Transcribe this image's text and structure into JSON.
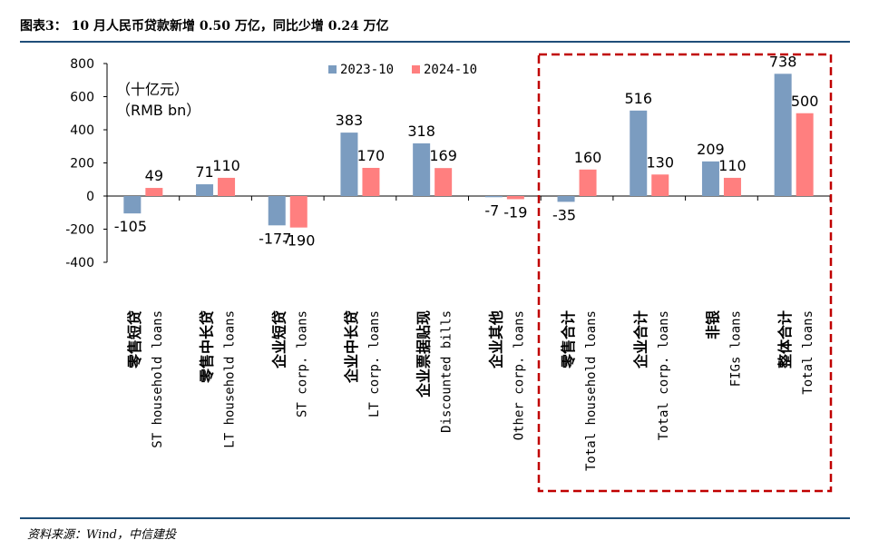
{
  "header": {
    "label": "图表3：",
    "title": "10 月人民币贷款新增 0.50 万亿，同比少增 0.24 万亿"
  },
  "source": "资料来源：Wind，中信建投",
  "chart_data": {
    "type": "bar",
    "unit_cn": "（十亿元）",
    "unit_en": "（RMB bn）",
    "ylim": [
      -400,
      800
    ],
    "yticks": [
      -400,
      -200,
      0,
      200,
      400,
      600,
      800
    ],
    "legend_position": "top-center",
    "categories": [
      {
        "cn": "零售短贷",
        "en": "ST household loans"
      },
      {
        "cn": "零售中长贷",
        "en": "LT household loans"
      },
      {
        "cn": "企业短贷",
        "en": "ST corp. loans"
      },
      {
        "cn": "企业中长贷",
        "en": "LT corp. loans"
      },
      {
        "cn": "企业票据贴现",
        "en": "Discounted bills"
      },
      {
        "cn": "企业其他",
        "en": "Other corp. loans"
      },
      {
        "cn": "零售合计",
        "en": "Total household loans"
      },
      {
        "cn": "企业合计",
        "en": "Total corp. loans"
      },
      {
        "cn": "非银",
        "en": "FIGs loans"
      },
      {
        "cn": "整体合计",
        "en": "Total loans"
      }
    ],
    "series": [
      {
        "name": "2023-10",
        "color": "#7b9cc0",
        "values": [
          -105,
          71,
          -177,
          383,
          318,
          -7,
          -35,
          516,
          209,
          738
        ]
      },
      {
        "name": "2024-10",
        "color": "#ff7f7f",
        "values": [
          49,
          110,
          -190,
          170,
          169,
          -19,
          160,
          130,
          110,
          500
        ]
      }
    ],
    "highlight_box_color": "#c00000"
  }
}
